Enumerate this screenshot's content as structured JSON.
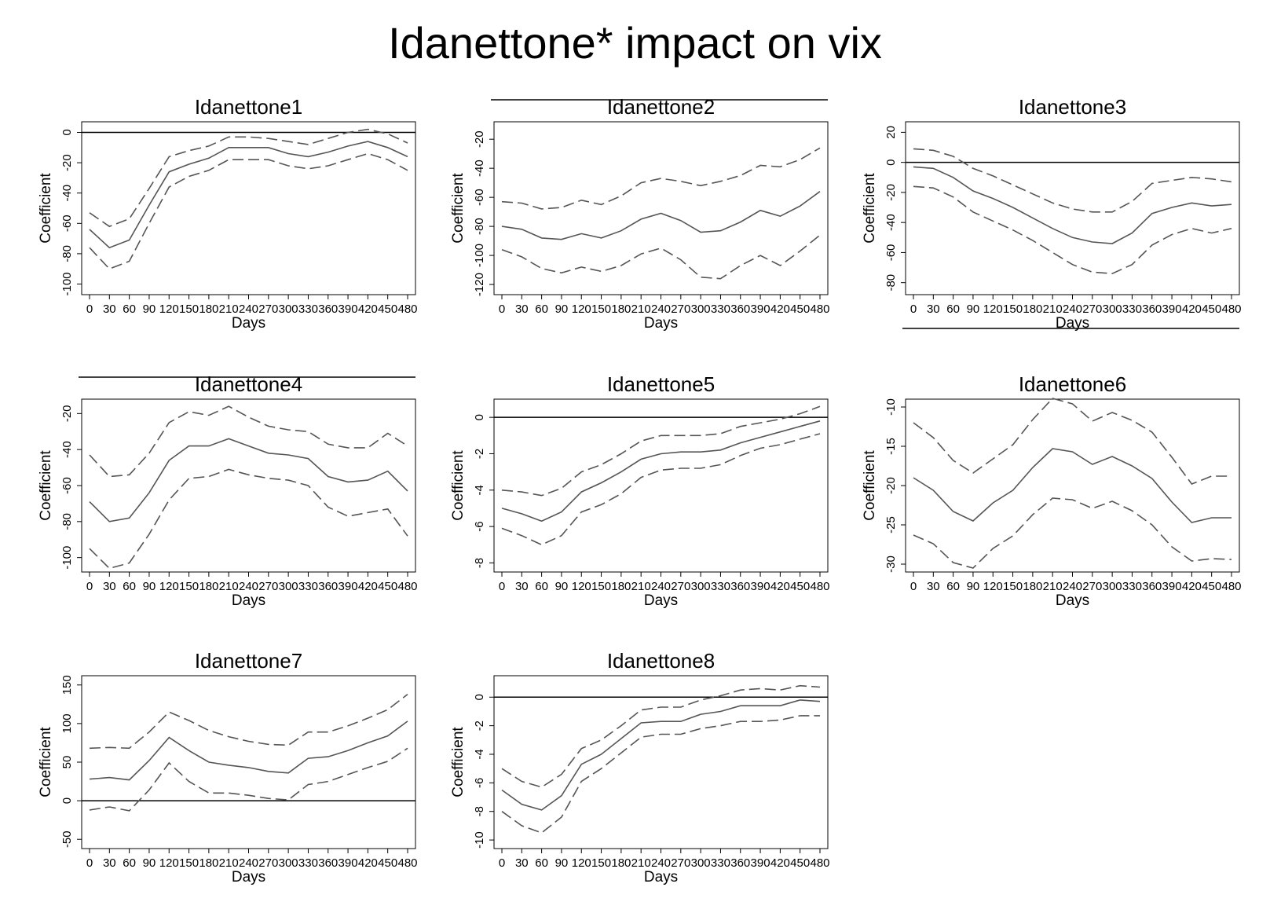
{
  "title": "Idanettone* impact on vix",
  "chart_data": [
    {
      "type": "line",
      "title": "Idanettone1",
      "xlabel": "Days",
      "ylabel": "Coefficient",
      "x": [
        0,
        30,
        60,
        90,
        120,
        150,
        180,
        210,
        240,
        270,
        300,
        330,
        360,
        390,
        420,
        450,
        480
      ],
      "xticks": [
        "0",
        "30",
        "60",
        "90",
        "120",
        "150",
        "180",
        "210",
        "240",
        "270",
        "300",
        "330",
        "360",
        "390",
        "420",
        "450",
        "480"
      ],
      "ylim": [
        -107,
        7
      ],
      "yticks": [
        0,
        -20,
        -40,
        -60,
        -80,
        -100
      ],
      "ytick_labels": [
        "0",
        "-20",
        "-40",
        "-60",
        "-80",
        "-100"
      ],
      "reference_line": 0,
      "series": [
        {
          "style": "solid",
          "values": [
            -64,
            -76,
            -71,
            -48,
            -26,
            -21,
            -17,
            -10,
            -10,
            -10,
            -14,
            -16,
            -13,
            -9,
            -6,
            -10,
            -16
          ]
        },
        {
          "style": "dashed",
          "values": [
            -53,
            -62,
            -57,
            -37,
            -16,
            -12,
            -9,
            -3,
            -3,
            -4,
            -6,
            -8,
            -4,
            0,
            2,
            -1,
            -7
          ]
        },
        {
          "style": "dashed",
          "values": [
            -76,
            -90,
            -85,
            -60,
            -36,
            -29,
            -25,
            -18,
            -18,
            -18,
            -22,
            -24,
            -22,
            -18,
            -14,
            -18,
            -25
          ]
        }
      ]
    },
    {
      "type": "line",
      "title": "Idanettone2",
      "xlabel": "Days",
      "ylabel": "Coefficient",
      "x": [
        0,
        30,
        60,
        90,
        120,
        150,
        180,
        210,
        240,
        270,
        300,
        330,
        360,
        390,
        420,
        450,
        480
      ],
      "xticks": [
        "0",
        "30",
        "60",
        "90",
        "120",
        "150",
        "180",
        "210",
        "240",
        "270",
        "300",
        "330",
        "360",
        "390",
        "420",
        "450",
        "480"
      ],
      "ylim": [
        -127,
        -8
      ],
      "yticks": [
        -20,
        -40,
        -60,
        -80,
        -100,
        -120
      ],
      "ytick_labels": [
        "-20",
        "-40",
        "-60",
        "-80",
        "-100",
        "-120"
      ],
      "reference_line": 0,
      "series": [
        {
          "style": "solid",
          "values": [
            -80,
            -82,
            -88,
            -89,
            -85,
            -88,
            -83,
            -75,
            -71,
            -76,
            -84,
            -83,
            -77,
            -69,
            -73,
            -66,
            -56
          ]
        },
        {
          "style": "dashed",
          "values": [
            -63,
            -64,
            -68,
            -67,
            -62,
            -65,
            -59,
            -50,
            -47,
            -49,
            -52,
            -49,
            -45,
            -38,
            -39,
            -34,
            -26
          ]
        },
        {
          "style": "dashed",
          "values": [
            -96,
            -101,
            -109,
            -112,
            -108,
            -111,
            -107,
            -99,
            -95,
            -103,
            -115,
            -116,
            -107,
            -100,
            -107,
            -97,
            -86
          ]
        }
      ]
    },
    {
      "type": "line",
      "title": "Idanettone3",
      "xlabel": "Days",
      "ylabel": "Coefficient",
      "x": [
        0,
        30,
        60,
        90,
        120,
        150,
        180,
        210,
        240,
        270,
        300,
        330,
        360,
        390,
        420,
        450,
        480
      ],
      "xticks": [
        "0",
        "30",
        "60",
        "90",
        "120",
        "150",
        "180",
        "210",
        "240",
        "270",
        "300",
        "330",
        "360",
        "390",
        "420",
        "450",
        "480"
      ],
      "ylim": [
        -88,
        27
      ],
      "yticks": [
        20,
        0,
        -20,
        -40,
        -60,
        -80
      ],
      "ytick_labels": [
        "20",
        "0",
        "-20",
        "-40",
        "-60",
        "-80"
      ],
      "reference_line": 0,
      "series": [
        {
          "style": "solid",
          "values": [
            -3,
            -4,
            -10,
            -19,
            -24,
            -30,
            -37,
            -44,
            -50,
            -53,
            -54,
            -47,
            -34,
            -30,
            -27,
            -29,
            -28
          ]
        },
        {
          "style": "dashed",
          "values": [
            9,
            8,
            4,
            -4,
            -9,
            -15,
            -21,
            -27,
            -31,
            -33,
            -33,
            -26,
            -14,
            -12,
            -10,
            -11,
            -13
          ]
        },
        {
          "style": "dashed",
          "values": [
            -16,
            -17,
            -23,
            -33,
            -39,
            -45,
            -52,
            -60,
            -68,
            -73,
            -74,
            -68,
            -55,
            -48,
            -44,
            -47,
            -44
          ]
        }
      ]
    },
    {
      "type": "line",
      "title": "Idanettone4",
      "xlabel": "Days",
      "ylabel": "Coefficient",
      "x": [
        0,
        30,
        60,
        90,
        120,
        150,
        180,
        210,
        240,
        270,
        300,
        330,
        360,
        390,
        420,
        450,
        480
      ],
      "xticks": [
        "0",
        "30",
        "60",
        "90",
        "120",
        "150",
        "180",
        "210",
        "240",
        "270",
        "300",
        "330",
        "360",
        "390",
        "420",
        "450",
        "480"
      ],
      "ylim": [
        -108,
        -12
      ],
      "yticks": [
        -20,
        -40,
        -60,
        -80,
        -100
      ],
      "ytick_labels": [
        "-20",
        "-40",
        "-60",
        "-80",
        "-100"
      ],
      "reference_line": 0,
      "series": [
        {
          "style": "solid",
          "values": [
            -69,
            -80,
            -78,
            -64,
            -46,
            -38,
            -38,
            -34,
            -38,
            -42,
            -43,
            -45,
            -55,
            -58,
            -57,
            -52,
            -63
          ]
        },
        {
          "style": "dashed",
          "values": [
            -43,
            -55,
            -54,
            -42,
            -25,
            -19,
            -21,
            -16,
            -22,
            -27,
            -29,
            -30,
            -37,
            -39,
            -39,
            -31,
            -38
          ]
        },
        {
          "style": "dashed",
          "values": [
            -95,
            -106,
            -103,
            -87,
            -68,
            -56,
            -55,
            -51,
            -54,
            -56,
            -57,
            -60,
            -72,
            -77,
            -75,
            -73,
            -88
          ]
        }
      ]
    },
    {
      "type": "line",
      "title": "Idanettone5",
      "xlabel": "Days",
      "ylabel": "Coefficient",
      "x": [
        0,
        30,
        60,
        90,
        120,
        150,
        180,
        210,
        240,
        270,
        300,
        330,
        360,
        390,
        420,
        450,
        480
      ],
      "xticks": [
        "0",
        "30",
        "60",
        "90",
        "120",
        "150",
        "180",
        "210",
        "240",
        "270",
        "300",
        "330",
        "360",
        "390",
        "420",
        "450",
        "480"
      ],
      "ylim": [
        -8.5,
        1
      ],
      "yticks": [
        0,
        -2,
        -4,
        -6,
        -8
      ],
      "ytick_labels": [
        "0",
        "-2",
        "-4",
        "-6",
        "-8"
      ],
      "reference_line": 0,
      "series": [
        {
          "style": "solid",
          "values": [
            -5.0,
            -5.3,
            -5.7,
            -5.2,
            -4.1,
            -3.6,
            -3.0,
            -2.3,
            -2.0,
            -1.9,
            -1.9,
            -1.8,
            -1.4,
            -1.1,
            -0.8,
            -0.5,
            -0.2
          ]
        },
        {
          "style": "dashed",
          "values": [
            -4.0,
            -4.1,
            -4.3,
            -3.9,
            -3.0,
            -2.6,
            -2.0,
            -1.3,
            -1.0,
            -1.0,
            -1.0,
            -0.9,
            -0.5,
            -0.3,
            -0.1,
            0.2,
            0.6
          ]
        },
        {
          "style": "dashed",
          "values": [
            -6.1,
            -6.5,
            -7.0,
            -6.5,
            -5.2,
            -4.8,
            -4.2,
            -3.3,
            -2.9,
            -2.8,
            -2.8,
            -2.6,
            -2.1,
            -1.7,
            -1.5,
            -1.2,
            -0.9
          ]
        }
      ]
    },
    {
      "type": "line",
      "title": "Idanettone6",
      "xlabel": "Days",
      "ylabel": "Coefficient",
      "x": [
        0,
        30,
        60,
        90,
        120,
        150,
        180,
        210,
        240,
        270,
        300,
        330,
        360,
        390,
        420,
        450,
        480
      ],
      "xticks": [
        "0",
        "30",
        "60",
        "90",
        "120",
        "150",
        "180",
        "210",
        "240",
        "270",
        "300",
        "330",
        "360",
        "390",
        "420",
        "450",
        "480"
      ],
      "ylim": [
        -31,
        -9
      ],
      "yticks": [
        -10,
        -15,
        -20,
        -25,
        -30
      ],
      "ytick_labels": [
        "-10",
        "-15",
        "-20",
        "-25",
        "-30"
      ],
      "reference_line": 0,
      "series": [
        {
          "style": "solid",
          "values": [
            -19.0,
            -20.6,
            -23.3,
            -24.5,
            -22.2,
            -20.6,
            -17.7,
            -15.3,
            -15.7,
            -17.3,
            -16.3,
            -17.5,
            -19.1,
            -22.1,
            -24.7,
            -24.1,
            -24.1
          ]
        },
        {
          "style": "dashed",
          "values": [
            -12.0,
            -13.9,
            -16.8,
            -18.4,
            -16.6,
            -14.8,
            -11.6,
            -8.9,
            -9.6,
            -11.8,
            -10.7,
            -11.7,
            -13.2,
            -16.4,
            -19.8,
            -18.8,
            -18.8
          ]
        },
        {
          "style": "dashed",
          "values": [
            -26.3,
            -27.4,
            -29.8,
            -30.5,
            -28.0,
            -26.4,
            -23.7,
            -21.6,
            -21.8,
            -22.9,
            -22.0,
            -23.2,
            -25.0,
            -27.8,
            -29.6,
            -29.3,
            -29.4
          ]
        }
      ]
    },
    {
      "type": "line",
      "title": "Idanettone7",
      "xlabel": "Days",
      "ylabel": "Coefficient",
      "x": [
        0,
        30,
        60,
        90,
        120,
        150,
        180,
        210,
        240,
        270,
        300,
        330,
        360,
        390,
        420,
        450,
        480
      ],
      "xticks": [
        "0",
        "30",
        "60",
        "90",
        "120",
        "150",
        "180",
        "210",
        "240",
        "270",
        "300",
        "330",
        "360",
        "390",
        "420",
        "450",
        "480"
      ],
      "ylim": [
        -62,
        162
      ],
      "yticks": [
        150,
        100,
        50,
        0,
        -50
      ],
      "ytick_labels": [
        "150",
        "100",
        "50",
        "0",
        "-50"
      ],
      "reference_line": 0,
      "series": [
        {
          "style": "solid",
          "values": [
            28,
            30,
            27,
            52,
            82,
            65,
            50,
            46,
            43,
            38,
            36,
            55,
            57,
            65,
            75,
            84,
            103
          ]
        },
        {
          "style": "dashed",
          "values": [
            68,
            69,
            68,
            89,
            115,
            104,
            91,
            83,
            77,
            73,
            72,
            89,
            89,
            97,
            107,
            118,
            138
          ]
        },
        {
          "style": "dashed",
          "values": [
            -12,
            -8,
            -13,
            14,
            49,
            25,
            10,
            10,
            7,
            3,
            1,
            21,
            25,
            34,
            43,
            51,
            68
          ]
        }
      ]
    },
    {
      "type": "line",
      "title": "Idanettone8",
      "xlabel": "Days",
      "ylabel": "Coefficient",
      "x": [
        0,
        30,
        60,
        90,
        120,
        150,
        180,
        210,
        240,
        270,
        300,
        330,
        360,
        390,
        420,
        450,
        480
      ],
      "xticks": [
        "0",
        "30",
        "60",
        "90",
        "120",
        "150",
        "180",
        "210",
        "240",
        "270",
        "300",
        "330",
        "360",
        "390",
        "420",
        "450",
        "480"
      ],
      "ylim": [
        -10.6,
        1.5
      ],
      "yticks": [
        0,
        -2,
        -4,
        -6,
        -8,
        -10
      ],
      "ytick_labels": [
        "0",
        "-2",
        "-4",
        "-6",
        "-8",
        "-10"
      ],
      "reference_line": 0,
      "series": [
        {
          "style": "solid",
          "values": [
            -6.5,
            -7.5,
            -7.9,
            -6.9,
            -4.7,
            -4.0,
            -2.9,
            -1.8,
            -1.7,
            -1.7,
            -1.2,
            -1.0,
            -0.6,
            -0.6,
            -0.6,
            -0.2,
            -0.3
          ]
        },
        {
          "style": "dashed",
          "values": [
            -5.0,
            -5.9,
            -6.3,
            -5.4,
            -3.6,
            -3.0,
            -2.0,
            -0.9,
            -0.7,
            -0.7,
            -0.2,
            0.1,
            0.5,
            0.6,
            0.5,
            0.8,
            0.7
          ]
        },
        {
          "style": "dashed",
          "values": [
            -8.0,
            -9.0,
            -9.5,
            -8.4,
            -5.9,
            -5.0,
            -3.9,
            -2.8,
            -2.6,
            -2.6,
            -2.2,
            -2.0,
            -1.7,
            -1.7,
            -1.6,
            -1.3,
            -1.3
          ]
        }
      ]
    }
  ]
}
